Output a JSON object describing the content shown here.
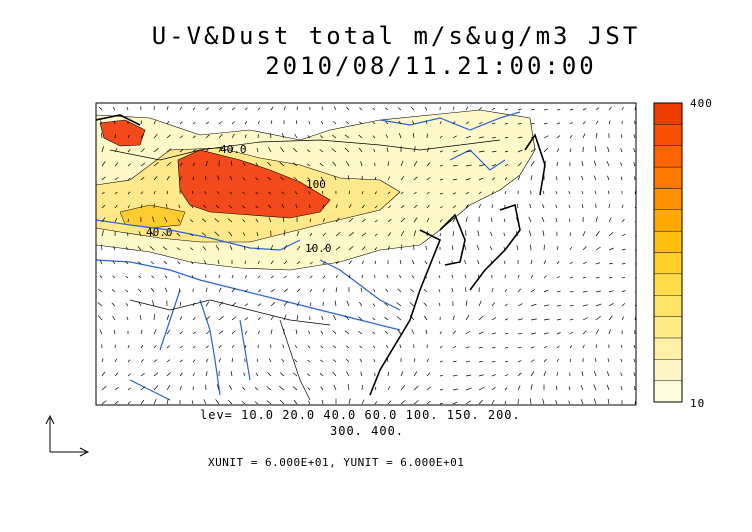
{
  "title": {
    "line1": "U-V&Dust total m/s&ug/m3 JST",
    "line2": "2010/08/11.21:00:00"
  },
  "legend": {
    "levels_line1": "lev= 10.0 20.0 40.0 60.0 100. 150. 200.",
    "levels_line2": "300. 400.",
    "units_line": "XUNIT = 6.000E+01, YUNIT = 6.000E+01"
  },
  "colorbar": {
    "max_label": "400",
    "min_label": "10",
    "colors": [
      "#fffbe0",
      "#fff6c8",
      "#fff0a8",
      "#ffeb88",
      "#ffe468",
      "#ffdc48",
      "#ffd028",
      "#ffbf10",
      "#ffa800",
      "#ff9000",
      "#ff7800",
      "#ff6400",
      "#f85000",
      "#ee3e00"
    ]
  },
  "contour_labels": [
    "40.0",
    "40.0",
    "10.0",
    "100"
  ],
  "colors": {
    "dust_high": "#f24a1a",
    "dust_mid": "#ffe45a",
    "dust_low": "#fff8c8",
    "river": "#2a62d8",
    "coast": "#000000"
  }
}
